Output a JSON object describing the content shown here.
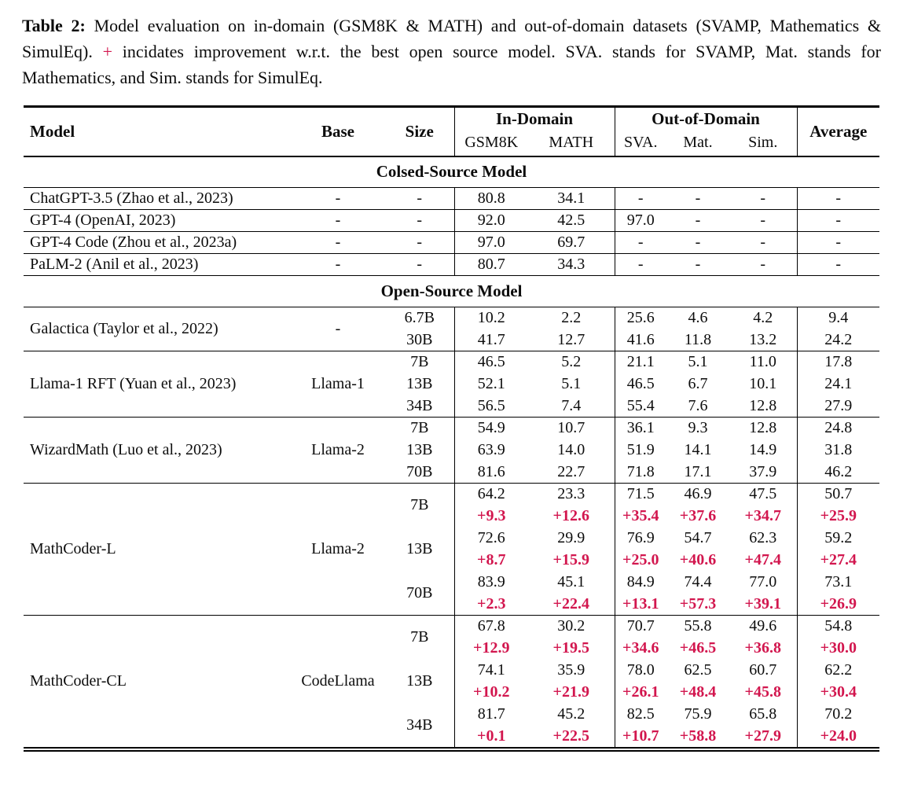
{
  "colors": {
    "accent_red": "#d2164e",
    "text": "#0c0c0c"
  },
  "caption": {
    "label": "Table 2:",
    "part1": "Model evaluation on in-domain (GSM8K & MATH) and out-of-domain datasets (SVAMP, Mathematics & SimulEq).",
    "plus": "+",
    "part2": "incidates improvement w.r.t. the best open source model. SVA. stands for SVAMP, Mat. stands for Mathematics, and Sim. stands for SimulEq."
  },
  "table": {
    "header": {
      "model": "Model",
      "base": "Base",
      "size": "Size",
      "in_domain": "In-Domain",
      "out_of_domain": "Out-of-Domain",
      "average": "Average",
      "sub": [
        "GSM8K",
        "MATH",
        "SVA.",
        "Mat.",
        "Sim."
      ]
    },
    "sections": [
      {
        "title": "Colsed-Source Model",
        "groups": [
          {
            "model": "ChatGPT-3.5 (Zhao et al., 2023)",
            "base": "-",
            "rows": [
              {
                "size": "-",
                "values": [
                  "80.8",
                  "34.1",
                  "-",
                  "-",
                  "-",
                  "-"
                ]
              }
            ]
          },
          {
            "model": "GPT-4 (OpenAI, 2023)",
            "base": "-",
            "rows": [
              {
                "size": "-",
                "values": [
                  "92.0",
                  "42.5",
                  "97.0",
                  "-",
                  "-",
                  "-"
                ]
              }
            ]
          },
          {
            "model": "GPT-4 Code (Zhou et al., 2023a)",
            "base": "-",
            "rows": [
              {
                "size": "-",
                "values": [
                  "97.0",
                  "69.7",
                  "-",
                  "-",
                  "-",
                  "-"
                ]
              }
            ]
          },
          {
            "model": "PaLM-2 (Anil et al., 2023)",
            "base": "-",
            "rows": [
              {
                "size": "-",
                "values": [
                  "80.7",
                  "34.3",
                  "-",
                  "-",
                  "-",
                  "-"
                ]
              }
            ]
          }
        ]
      },
      {
        "title": "Open-Source Model",
        "groups": [
          {
            "model": "Galactica (Taylor et al., 2022)",
            "base": "-",
            "rows": [
              {
                "size": "6.7B",
                "values": [
                  "10.2",
                  "2.2",
                  "25.6",
                  "4.6",
                  "4.2",
                  "9.4"
                ]
              },
              {
                "size": "30B",
                "values": [
                  "41.7",
                  "12.7",
                  "41.6",
                  "11.8",
                  "13.2",
                  "24.2"
                ]
              }
            ]
          },
          {
            "model": "Llama-1 RFT (Yuan et al., 2023)",
            "base": "Llama-1",
            "rows": [
              {
                "size": "7B",
                "values": [
                  "46.5",
                  "5.2",
                  "21.1",
                  "5.1",
                  "11.0",
                  "17.8"
                ]
              },
              {
                "size": "13B",
                "values": [
                  "52.1",
                  "5.1",
                  "46.5",
                  "6.7",
                  "10.1",
                  "24.1"
                ]
              },
              {
                "size": "34B",
                "values": [
                  "56.5",
                  "7.4",
                  "55.4",
                  "7.6",
                  "12.8",
                  "27.9"
                ]
              }
            ]
          },
          {
            "model": "WizardMath (Luo et al., 2023)",
            "base": "Llama-2",
            "rows": [
              {
                "size": "7B",
                "values": [
                  "54.9",
                  "10.7",
                  "36.1",
                  "9.3",
                  "12.8",
                  "24.8"
                ]
              },
              {
                "size": "13B",
                "values": [
                  "63.9",
                  "14.0",
                  "51.9",
                  "14.1",
                  "14.9",
                  "31.8"
                ]
              },
              {
                "size": "70B",
                "values": [
                  "81.6",
                  "22.7",
                  "71.8",
                  "17.1",
                  "37.9",
                  "46.2"
                ]
              }
            ]
          },
          {
            "model": "MathCoder-L",
            "base": "Llama-2",
            "rows": [
              {
                "size": "7B",
                "values": [
                  "64.2",
                  "23.3",
                  "71.5",
                  "46.9",
                  "47.5",
                  "50.7"
                ],
                "delta": [
                  "+9.3",
                  "+12.6",
                  "+35.4",
                  "+37.6",
                  "+34.7",
                  "+25.9"
                ]
              },
              {
                "size": "13B",
                "values": [
                  "72.6",
                  "29.9",
                  "76.9",
                  "54.7",
                  "62.3",
                  "59.2"
                ],
                "delta": [
                  "+8.7",
                  "+15.9",
                  "+25.0",
                  "+40.6",
                  "+47.4",
                  "+27.4"
                ]
              },
              {
                "size": "70B",
                "values": [
                  "83.9",
                  "45.1",
                  "84.9",
                  "74.4",
                  "77.0",
                  "73.1"
                ],
                "delta": [
                  "+2.3",
                  "+22.4",
                  "+13.1",
                  "+57.3",
                  "+39.1",
                  "+26.9"
                ]
              }
            ]
          },
          {
            "model": "MathCoder-CL",
            "base": "CodeLlama",
            "rows": [
              {
                "size": "7B",
                "values": [
                  "67.8",
                  "30.2",
                  "70.7",
                  "55.8",
                  "49.6",
                  "54.8"
                ],
                "delta": [
                  "+12.9",
                  "+19.5",
                  "+34.6",
                  "+46.5",
                  "+36.8",
                  "+30.0"
                ]
              },
              {
                "size": "13B",
                "values": [
                  "74.1",
                  "35.9",
                  "78.0",
                  "62.5",
                  "60.7",
                  "62.2"
                ],
                "delta": [
                  "+10.2",
                  "+21.9",
                  "+26.1",
                  "+48.4",
                  "+45.8",
                  "+30.4"
                ]
              },
              {
                "size": "34B",
                "values": [
                  "81.7",
                  "45.2",
                  "82.5",
                  "75.9",
                  "65.8",
                  "70.2"
                ],
                "delta": [
                  "+0.1",
                  "+22.5",
                  "+10.7",
                  "+58.8",
                  "+27.9",
                  "+24.0"
                ]
              }
            ]
          }
        ]
      }
    ]
  }
}
